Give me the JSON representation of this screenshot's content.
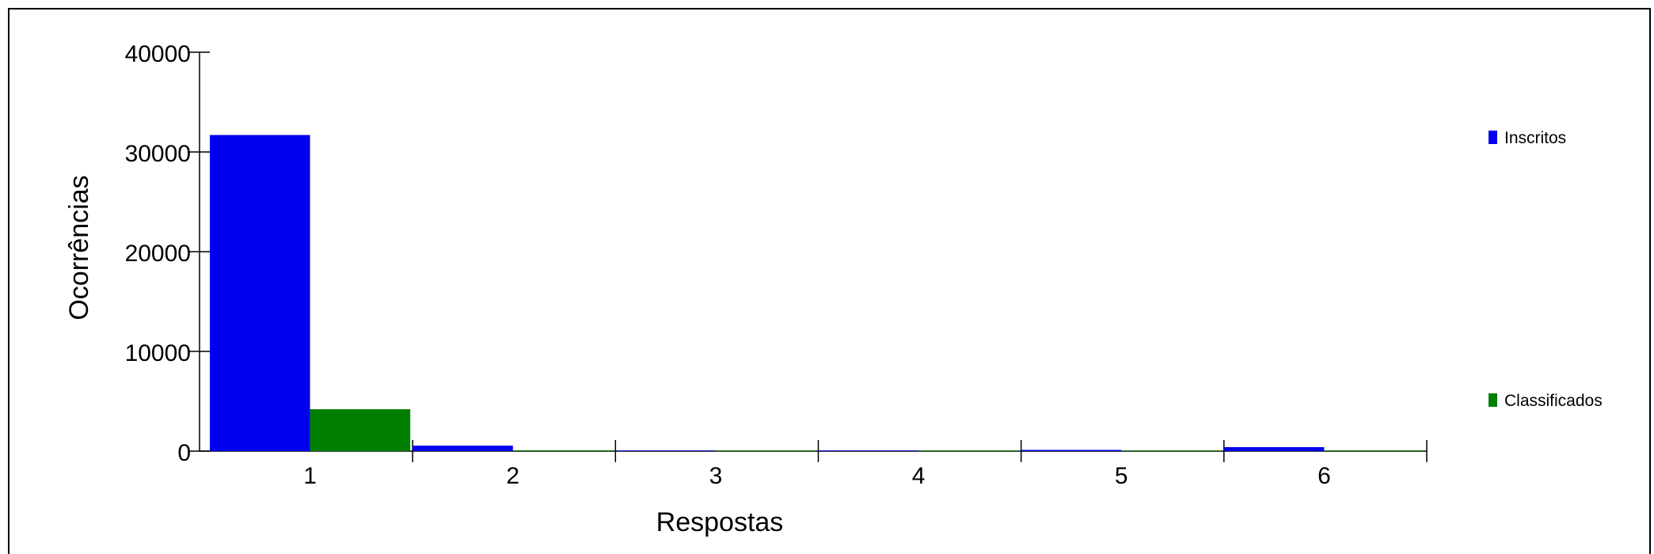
{
  "chart_data": {
    "type": "bar",
    "title": "",
    "xlabel": "Respostas",
    "ylabel": "Ocorrências",
    "categories": [
      "1",
      "2",
      "3",
      "4",
      "5",
      "6"
    ],
    "ylim": [
      0,
      40000
    ],
    "yticks": [
      "0",
      "10000",
      "20000",
      "30000",
      "40000"
    ],
    "yticks_values": [
      0,
      10000,
      20000,
      30000,
      40000
    ],
    "grid": false,
    "legend_position": "right",
    "series": [
      {
        "name": "Inscritos",
        "color": "#0000ee",
        "values": [
          31700,
          550,
          10,
          15,
          120,
          400
        ]
      },
      {
        "name": "Classificados",
        "color": "#007f00",
        "values": [
          4200,
          80,
          2,
          3,
          15,
          70
        ]
      }
    ]
  }
}
